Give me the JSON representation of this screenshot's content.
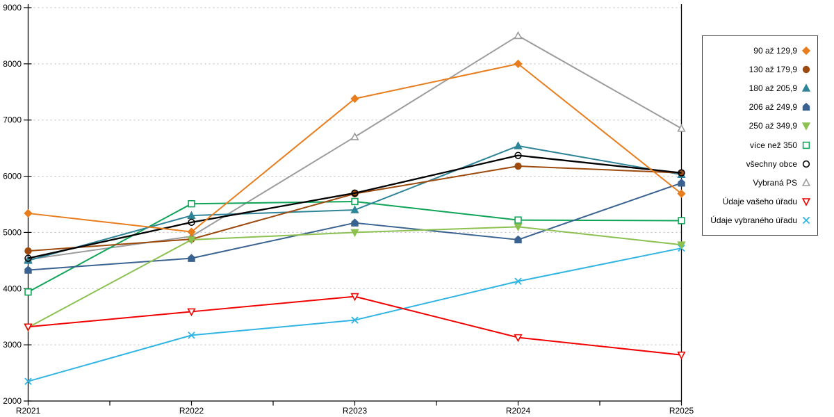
{
  "chart_data": {
    "type": "line",
    "title": "",
    "xlabel": "",
    "ylabel": "",
    "categories": [
      "R2021",
      "R2022",
      "R2023",
      "R2024",
      "R2025"
    ],
    "series": [
      {
        "name": "90 až 129,9",
        "marker": "diamond",
        "marker_fill": "filled",
        "color": "#E87D1E",
        "values": [
          5340,
          5010,
          7380,
          8000,
          5690
        ]
      },
      {
        "name": "130 až 179,9",
        "marker": "circle",
        "marker_fill": "filled",
        "color": "#9C4A0E",
        "values": [
          4670,
          4880,
          5690,
          6180,
          6060
        ]
      },
      {
        "name": "180 až 205,9",
        "marker": "triangle-up",
        "marker_fill": "filled",
        "color": "#2F8498",
        "values": [
          4500,
          5300,
          5400,
          6540,
          6030
        ]
      },
      {
        "name": "206 až 249,9",
        "marker": "pentagon",
        "marker_fill": "filled",
        "color": "#3A6290",
        "values": [
          4330,
          4540,
          5170,
          4870,
          5880
        ]
      },
      {
        "name": "250 až 349,9",
        "marker": "triangle-down",
        "marker_fill": "filled",
        "color": "#8CC152",
        "values": [
          3310,
          4870,
          5000,
          5100,
          4780
        ]
      },
      {
        "name": "více než 350",
        "marker": "square",
        "marker_fill": "open",
        "color": "#0FA457",
        "values": [
          3940,
          5510,
          5550,
          5220,
          5210
        ]
      },
      {
        "name": "všechny obce",
        "marker": "circle",
        "marker_fill": "open",
        "color": "#000000",
        "values": [
          4540,
          5180,
          5700,
          6370,
          6060
        ]
      },
      {
        "name": "Vybraná PS",
        "marker": "triangle-up",
        "marker_fill": "open",
        "color": "#9C9C9C",
        "values": [
          4520,
          4930,
          6700,
          8500,
          6850
        ]
      },
      {
        "name": "Údaje vašeho úřadu",
        "marker": "triangle-down",
        "marker_fill": "open",
        "color": "#F20000",
        "values": [
          3320,
          3590,
          3860,
          3130,
          2820
        ]
      },
      {
        "name": "Údaje vybraného úřadu",
        "marker": "x",
        "marker_fill": "open",
        "color": "#30B4E4",
        "values": [
          2350,
          3170,
          3440,
          4130,
          4720
        ]
      }
    ],
    "y_axis": {
      "min": 2000,
      "max": 9000,
      "step": 1000,
      "ticks": [
        "2000",
        "3000",
        "4000",
        "5000",
        "6000",
        "7000",
        "8000",
        "9000"
      ]
    },
    "x_axis": {
      "ticks": [
        "R2021",
        "R2022",
        "R2023",
        "R2024",
        "R2025"
      ],
      "minor_ticks_at_midpoints": true
    },
    "grid": "horizontal-dotted",
    "grid_color": "#b8b8b8",
    "legend_position": "right"
  }
}
